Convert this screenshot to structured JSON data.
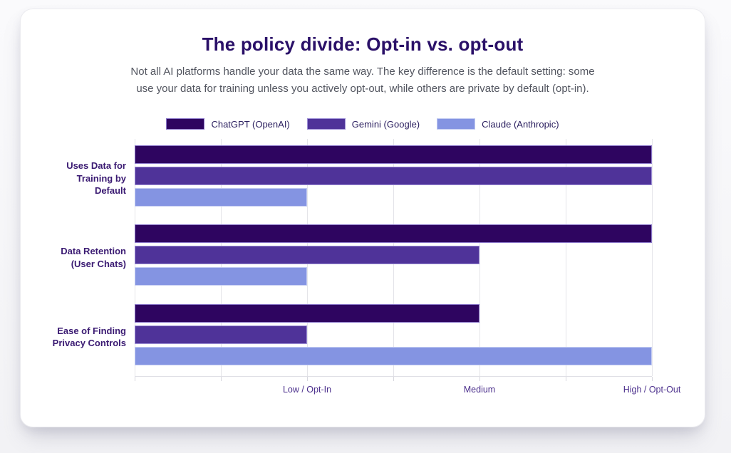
{
  "card": {
    "title": "The policy divide: Opt-in vs. opt-out",
    "subtitle_lines": [
      "Not all AI platforms handle your data the same way. The key difference is the default setting: some",
      "use your data for training unless you actively opt-out, while others are private by default (opt-in)."
    ]
  },
  "colors": {
    "title": "#2a1068",
    "subtitle": "#52555f",
    "category_label": "#3a1a72",
    "axis_label": "#4b2f8c",
    "gridline": "#e4e4e9",
    "card_background": "#ffffff",
    "page_background": "#f2f2f5"
  },
  "chart_data": {
    "type": "bar",
    "orientation": "horizontal",
    "title": "The policy divide: Opt-in vs. opt-out",
    "categories": [
      "Uses Data for\nTraining by\nDefault",
      "Data Retention\n(User Chats)",
      "Ease of Finding\nPrivacy Controls"
    ],
    "series": [
      {
        "name": "ChatGPT (OpenAI)",
        "color": "#2e0560",
        "border_color": "#8a76c9",
        "values": [
          3,
          3,
          2
        ]
      },
      {
        "name": "Gemini (Google)",
        "color": "#4f3399",
        "border_color": "#9d8fd6",
        "values": [
          3,
          2,
          1
        ]
      },
      {
        "name": "Claude (Anthropic)",
        "color": "#8494e2",
        "border_color": "#c3ccf2",
        "values": [
          1,
          1,
          3
        ]
      }
    ],
    "value_scale": {
      "min": 0,
      "max": 3,
      "gridline_step": 0.5
    },
    "x_ticks": [
      {
        "value": 1,
        "label": "Low / Opt-In"
      },
      {
        "value": 2,
        "label": "Medium"
      },
      {
        "value": 3,
        "label": "High / Opt-Out"
      }
    ],
    "value_legend": {
      "1": "Low / Opt-In",
      "2": "Medium",
      "3": "High / Opt-Out"
    },
    "grid": true,
    "legend_position": "top"
  }
}
